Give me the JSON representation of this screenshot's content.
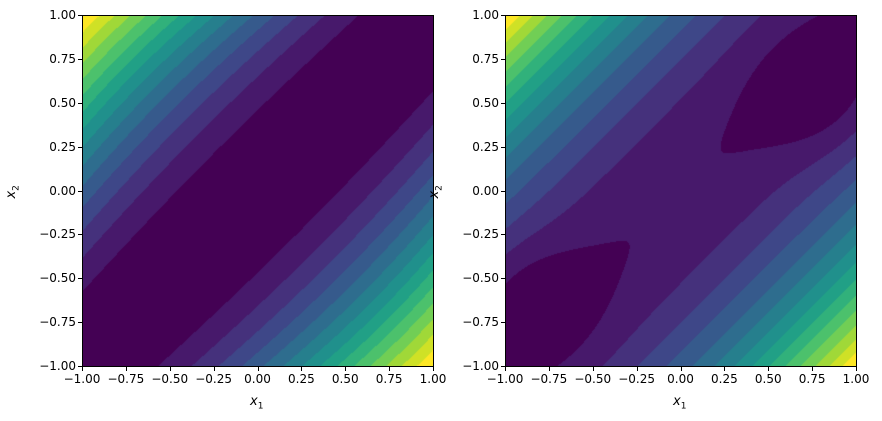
{
  "chart_data": [
    {
      "type": "heatmap",
      "subtype": "filled-contour",
      "title": "",
      "xlabel": "x1",
      "ylabel": "x2",
      "xlim": [
        -1.0,
        1.0
      ],
      "ylim": [
        -1.0,
        1.0
      ],
      "xticks": [
        "-1.00",
        "-0.75",
        "-0.50",
        "-0.25",
        "0.00",
        "0.25",
        "0.50",
        "0.75",
        "1.00"
      ],
      "yticks": [
        "-1.00",
        "-0.75",
        "-0.50",
        "-0.25",
        "0.00",
        "0.25",
        "0.50",
        "0.75",
        "1.00"
      ],
      "colormap": "viridis",
      "levels": 15,
      "description": "Low valley along diagonal x2 = x1; maxima near (-0.7, 1.0) and (0.7, -1.0)",
      "maxima": [
        [
          -0.7,
          1.0
        ],
        [
          0.7,
          -1.0
        ]
      ]
    },
    {
      "type": "heatmap",
      "subtype": "filled-contour",
      "title": "",
      "xlabel": "x1",
      "ylabel": "x2",
      "xlim": [
        -1.0,
        1.0
      ],
      "ylim": [
        -1.0,
        1.0
      ],
      "xticks": [
        "-1.00",
        "-0.75",
        "-0.50",
        "-0.25",
        "0.00",
        "0.25",
        "0.50",
        "0.75",
        "1.00"
      ],
      "yticks": [
        "-1.00",
        "-0.75",
        "-0.50",
        "-0.25",
        "0.00",
        "0.25",
        "0.50",
        "0.75",
        "1.00"
      ],
      "colormap": "viridis",
      "levels": 15,
      "description": "Broad low region along diagonal with two darkest lobes near (0.75, 0.5) and (-0.8, -0.6); maxima near (-0.7, 1.0) and (0.65, -1.0)",
      "maxima": [
        [
          -0.7,
          1.0
        ],
        [
          0.65,
          -1.0
        ]
      ],
      "minima": [
        [
          0.8,
          0.55
        ],
        [
          -0.8,
          -0.65
        ]
      ]
    }
  ],
  "labels": {
    "x1": "x",
    "x1_sub": "1",
    "x2": "x",
    "x2_sub": "2"
  }
}
